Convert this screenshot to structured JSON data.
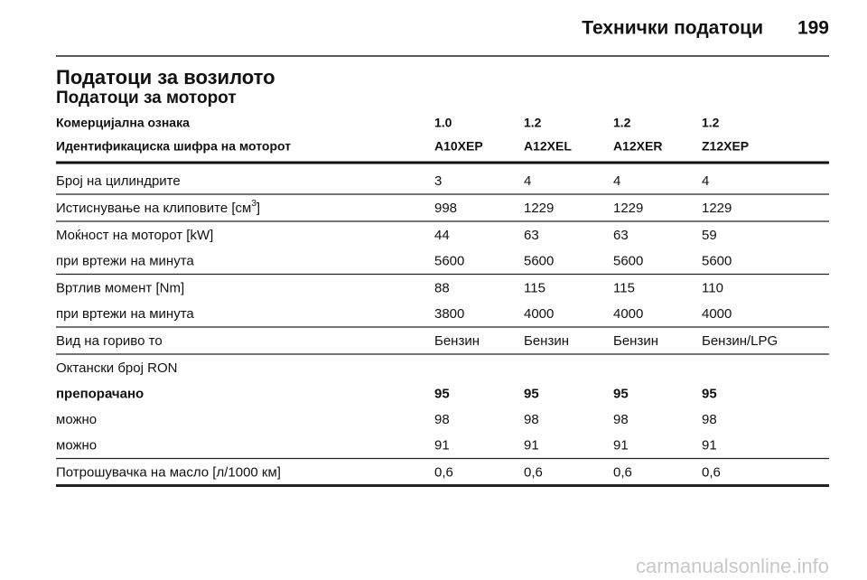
{
  "header": {
    "section": "Технички податоци",
    "page": "199"
  },
  "title": "Податоци за возилото",
  "subtitle": "Податоци за моторот",
  "table": {
    "header": [
      [
        "Комерцијална ознака",
        "1.0",
        "1.2",
        "1.2",
        "1.2"
      ],
      [
        "Идентификациска шифра на моторот",
        "A10XEP",
        "A12XEL",
        "A12XER",
        "Z12XEP"
      ]
    ],
    "groups": [
      [
        {
          "cells": [
            "Број на цилиндрите",
            "3",
            "4",
            "4",
            "4"
          ]
        }
      ],
      [
        {
          "cells": [
            [
              "Истиснување на клиповите [см",
              "3",
              "]"
            ],
            "998",
            "1229",
            "1229",
            "1229"
          ]
        }
      ],
      [
        {
          "cells": [
            "Моќност на моторот [kW]",
            "44",
            "63",
            "63",
            "59"
          ]
        },
        {
          "cells": [
            "при вртежи на минута",
            "5600",
            "5600",
            "5600",
            "5600"
          ]
        }
      ],
      [
        {
          "cells": [
            "Вртлив момент [Nm]",
            "88",
            "115",
            "115",
            "110"
          ]
        },
        {
          "cells": [
            "при вртежи на минута",
            "3800",
            "4000",
            "4000",
            "4000"
          ]
        }
      ],
      [
        {
          "cells": [
            "Вид на гориво то",
            "Бензин",
            "Бензин",
            "Бензин",
            "Бензин/LPG"
          ]
        }
      ],
      [
        {
          "cells": [
            "Октански број RON"
          ]
        },
        {
          "cells": [
            "препорачано",
            "95",
            "95",
            "95",
            "95"
          ],
          "bold": true
        },
        {
          "cells": [
            "можно",
            "98",
            "98",
            "98",
            "98"
          ]
        },
        {
          "cells": [
            "можно",
            "91",
            "91",
            "91",
            "91"
          ]
        }
      ],
      [
        {
          "cells": [
            "Потрошувачка на масло [л/1000 км]",
            "0,6",
            "0,6",
            "0,6",
            "0,6"
          ]
        }
      ]
    ]
  },
  "watermark": "carmanualsonline.info"
}
